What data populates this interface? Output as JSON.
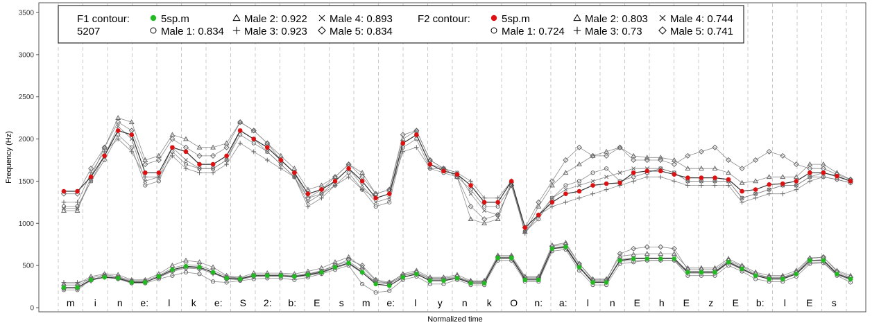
{
  "chart_data": {
    "type": "line",
    "xlabel": "Normalized time",
    "ylabel": "Frequency (Hz)",
    "ylim": [
      0,
      3600
    ],
    "yticks": [
      0,
      500,
      1000,
      1500,
      2000,
      2500,
      3000,
      3500
    ],
    "grid": "vertical dashed segment boundaries",
    "legend_position": "top",
    "segments": [
      "m",
      "i",
      "n",
      "e:",
      "l",
      "k",
      "e:",
      "S",
      "2:",
      "b:",
      "E",
      "s",
      "m",
      "e:",
      "l",
      "y",
      "n",
      "k",
      "O",
      "n:",
      "a:",
      "l",
      "n",
      "E",
      "h",
      "E",
      "z",
      "E",
      "b:",
      "l",
      "E",
      "s"
    ],
    "legend": {
      "f1_title": "F1 contour:",
      "f1_id": "5207",
      "f1_items": [
        {
          "marker": "dot",
          "label": "5sp.m",
          "color": "#22bb22"
        },
        {
          "marker": "circle",
          "label": "Male 1: 0.834"
        },
        {
          "marker": "triangle",
          "label": "Male 2: 0.922"
        },
        {
          "marker": "plus",
          "label": "Male 3: 0.923"
        },
        {
          "marker": "cross",
          "label": "Male 4: 0.893"
        },
        {
          "marker": "diamond",
          "label": "Male 5: 0.834"
        }
      ],
      "f2_title": "F2 contour:",
      "f2_items": [
        {
          "marker": "dot",
          "label": "5sp.m",
          "color": "#dd1111"
        },
        {
          "marker": "circle",
          "label": "Male 1: 0.724"
        },
        {
          "marker": "triangle",
          "label": "Male 2: 0.803"
        },
        {
          "marker": "plus",
          "label": "Male 3: 0.73"
        },
        {
          "marker": "cross",
          "label": "Male 4: 0.744"
        },
        {
          "marker": "diamond",
          "label": "Male 5: 0.741"
        }
      ]
    },
    "series": [
      {
        "name": "5sp.m",
        "formant": "F1",
        "color": "#22bb22",
        "values": [
          240,
          240,
          330,
          360,
          350,
          300,
          300,
          370,
          450,
          490,
          480,
          420,
          350,
          340,
          380,
          380,
          380,
          370,
          390,
          420,
          480,
          530,
          420,
          280,
          260,
          360,
          400,
          320,
          320,
          350,
          290,
          290,
          590,
          590,
          330,
          330,
          700,
          720,
          480,
          300,
          300,
          560,
          580,
          580,
          580,
          580,
          420,
          420,
          420,
          540,
          460,
          380,
          340,
          340,
          400,
          560,
          560,
          400,
          340
        ]
      },
      {
        "name": "Male 1",
        "formant": "F1",
        "marker": "circle",
        "color": "#666666",
        "values": [
          210,
          210,
          330,
          380,
          340,
          290,
          290,
          340,
          380,
          420,
          400,
          310,
          300,
          320,
          340,
          350,
          350,
          330,
          360,
          400,
          450,
          500,
          280,
          180,
          200,
          330,
          370,
          280,
          280,
          330,
          270,
          270,
          560,
          560,
          310,
          310,
          670,
          690,
          440,
          270,
          270,
          520,
          540,
          560,
          560,
          560,
          380,
          380,
          380,
          500,
          430,
          340,
          310,
          310,
          370,
          520,
          530,
          380,
          300
        ]
      },
      {
        "name": "Male 2",
        "formant": "F1",
        "marker": "triangle",
        "color": "#666666",
        "values": [
          280,
          280,
          370,
          400,
          390,
          330,
          330,
          400,
          500,
          560,
          540,
          480,
          380,
          360,
          410,
          410,
          410,
          400,
          430,
          470,
          540,
          600,
          480,
          320,
          290,
          400,
          440,
          360,
          360,
          390,
          320,
          320,
          620,
          620,
          370,
          370,
          740,
          770,
          520,
          340,
          340,
          610,
          630,
          640,
          640,
          640,
          470,
          470,
          470,
          580,
          500,
          420,
          380,
          380,
          440,
          590,
          600,
          440,
          380
        ]
      },
      {
        "name": "Male 3",
        "formant": "F1",
        "marker": "plus",
        "color": "#666666",
        "values": [
          300,
          300,
          340,
          360,
          340,
          310,
          310,
          360,
          440,
          480,
          470,
          400,
          360,
          350,
          370,
          370,
          370,
          360,
          380,
          410,
          470,
          520,
          410,
          300,
          290,
          370,
          390,
          330,
          330,
          350,
          310,
          310,
          580,
          580,
          340,
          340,
          700,
          710,
          470,
          320,
          320,
          550,
          560,
          560,
          560,
          560,
          410,
          410,
          410,
          530,
          450,
          380,
          360,
          360,
          400,
          540,
          540,
          390,
          330
        ]
      },
      {
        "name": "Male 4",
        "formant": "F1",
        "marker": "cross",
        "color": "#666666",
        "values": [
          260,
          260,
          350,
          390,
          370,
          320,
          320,
          380,
          470,
          510,
          500,
          440,
          370,
          350,
          390,
          390,
          390,
          380,
          400,
          440,
          500,
          550,
          440,
          300,
          280,
          380,
          410,
          340,
          340,
          360,
          300,
          300,
          600,
          600,
          350,
          350,
          710,
          730,
          490,
          310,
          310,
          570,
          590,
          590,
          590,
          590,
          430,
          430,
          430,
          550,
          470,
          390,
          350,
          350,
          410,
          560,
          570,
          410,
          350
        ]
      },
      {
        "name": "Male 5",
        "formant": "F1",
        "marker": "diamond",
        "color": "#666666",
        "values": [
          230,
          230,
          320,
          370,
          360,
          310,
          310,
          360,
          430,
          470,
          460,
          410,
          340,
          330,
          370,
          380,
          380,
          370,
          400,
          430,
          500,
          570,
          500,
          330,
          300,
          390,
          420,
          350,
          350,
          370,
          310,
          310,
          600,
          600,
          360,
          360,
          730,
          750,
          520,
          330,
          330,
          640,
          700,
          720,
          720,
          700,
          450,
          450,
          450,
          560,
          490,
          400,
          360,
          360,
          420,
          580,
          600,
          430,
          360
        ]
      },
      {
        "name": "5sp.m",
        "formant": "F2",
        "color": "#dd1111",
        "values": [
          1380,
          1380,
          1550,
          1800,
          2100,
          2050,
          1600,
          1600,
          1900,
          1850,
          1700,
          1700,
          1800,
          2100,
          2000,
          1900,
          1750,
          1600,
          1350,
          1400,
          1500,
          1650,
          1500,
          1300,
          1350,
          1950,
          2050,
          1700,
          1620,
          1580,
          1450,
          1250,
          1250,
          1500,
          950,
          1100,
          1250,
          1350,
          1380,
          1450,
          1470,
          1480,
          1600,
          1620,
          1620,
          1580,
          1540,
          1540,
          1540,
          1520,
          1380,
          1400,
          1460,
          1470,
          1500,
          1600,
          1600,
          1560,
          1500
        ]
      },
      {
        "name": "Male 1",
        "formant": "F2",
        "marker": "circle",
        "color": "#666666",
        "values": [
          1200,
          1200,
          1500,
          1750,
          2050,
          1900,
          1450,
          1500,
          1850,
          1700,
          1650,
          1650,
          1750,
          2050,
          1950,
          1850,
          1700,
          1550,
          1300,
          1350,
          1450,
          1600,
          1400,
          1200,
          1250,
          1900,
          2000,
          1650,
          1600,
          1550,
          1400,
          1200,
          1200,
          1450,
          900,
          1050,
          1300,
          1450,
          1500,
          1600,
          1650,
          1500,
          1550,
          1600,
          1650,
          1600,
          1500,
          1500,
          1500,
          1500,
          1300,
          1350,
          1400,
          1450,
          1450,
          1550,
          1550,
          1520,
          1480
        ]
      },
      {
        "name": "Male 2",
        "formant": "F2",
        "marker": "triangle",
        "color": "#666666",
        "values": [
          1150,
          1150,
          1550,
          1900,
          2250,
          2200,
          1750,
          1800,
          2050,
          2000,
          1900,
          1900,
          1950,
          2200,
          2100,
          1950,
          1800,
          1650,
          1400,
          1450,
          1550,
          1700,
          1600,
          1350,
          1400,
          2000,
          2100,
          1750,
          1650,
          1550,
          1050,
          1000,
          1050,
          1500,
          900,
          1200,
          1450,
          1600,
          1700,
          1800,
          1850,
          1900,
          1800,
          1780,
          1780,
          1750,
          1650,
          1650,
          1650,
          1600,
          1480,
          1500,
          1550,
          1550,
          1550,
          1700,
          1700,
          1600,
          1520
        ]
      },
      {
        "name": "Male 3",
        "formant": "F2",
        "marker": "plus",
        "color": "#666666",
        "values": [
          1250,
          1250,
          1600,
          1850,
          2000,
          1850,
          1550,
          1550,
          1800,
          1650,
          1600,
          1600,
          1700,
          1950,
          1850,
          1750,
          1650,
          1550,
          1200,
          1300,
          1450,
          1550,
          1400,
          1300,
          1350,
          1850,
          1900,
          1650,
          1650,
          1600,
          1500,
          1300,
          1300,
          1500,
          880,
          1100,
          1200,
          1250,
          1300,
          1350,
          1400,
          1450,
          1500,
          1550,
          1550,
          1500,
          1450,
          1450,
          1450,
          1450,
          1250,
          1300,
          1350,
          1350,
          1400,
          1500,
          1550,
          1520,
          1480
        ]
      },
      {
        "name": "Male 4",
        "formant": "F2",
        "marker": "cross",
        "color": "#666666",
        "values": [
          1180,
          1180,
          1500,
          1800,
          2150,
          2000,
          1500,
          1550,
          1900,
          1750,
          1650,
          1650,
          1750,
          2100,
          2000,
          1850,
          1700,
          1550,
          1250,
          1350,
          1500,
          1650,
          1450,
          1250,
          1300,
          1950,
          2050,
          1700,
          1650,
          1600,
          1350,
          1150,
          1100,
          1450,
          900,
          1100,
          1300,
          1400,
          1450,
          1500,
          1550,
          1600,
          1650,
          1650,
          1650,
          1600,
          1500,
          1500,
          1500,
          1500,
          1300,
          1350,
          1400,
          1450,
          1450,
          1550,
          1600,
          1550,
          1500
        ]
      },
      {
        "name": "Male 5",
        "formant": "F2",
        "marker": "diamond",
        "color": "#666666",
        "values": [
          1350,
          1350,
          1650,
          1900,
          2200,
          2100,
          1700,
          1750,
          2000,
          1900,
          1800,
          1800,
          1900,
          2200,
          2100,
          1950,
          1750,
          1600,
          1300,
          1400,
          1550,
          1700,
          1550,
          1350,
          1400,
          2050,
          2100,
          1750,
          1650,
          1550,
          1200,
          1050,
          1100,
          1450,
          950,
          1250,
          1500,
          1750,
          1900,
          1800,
          1800,
          1900,
          1750,
          1750,
          1750,
          1700,
          1800,
          1850,
          1900,
          1750,
          1650,
          1750,
          1850,
          1800,
          1700,
          1650,
          1650,
          1580,
          1520
        ]
      }
    ]
  }
}
